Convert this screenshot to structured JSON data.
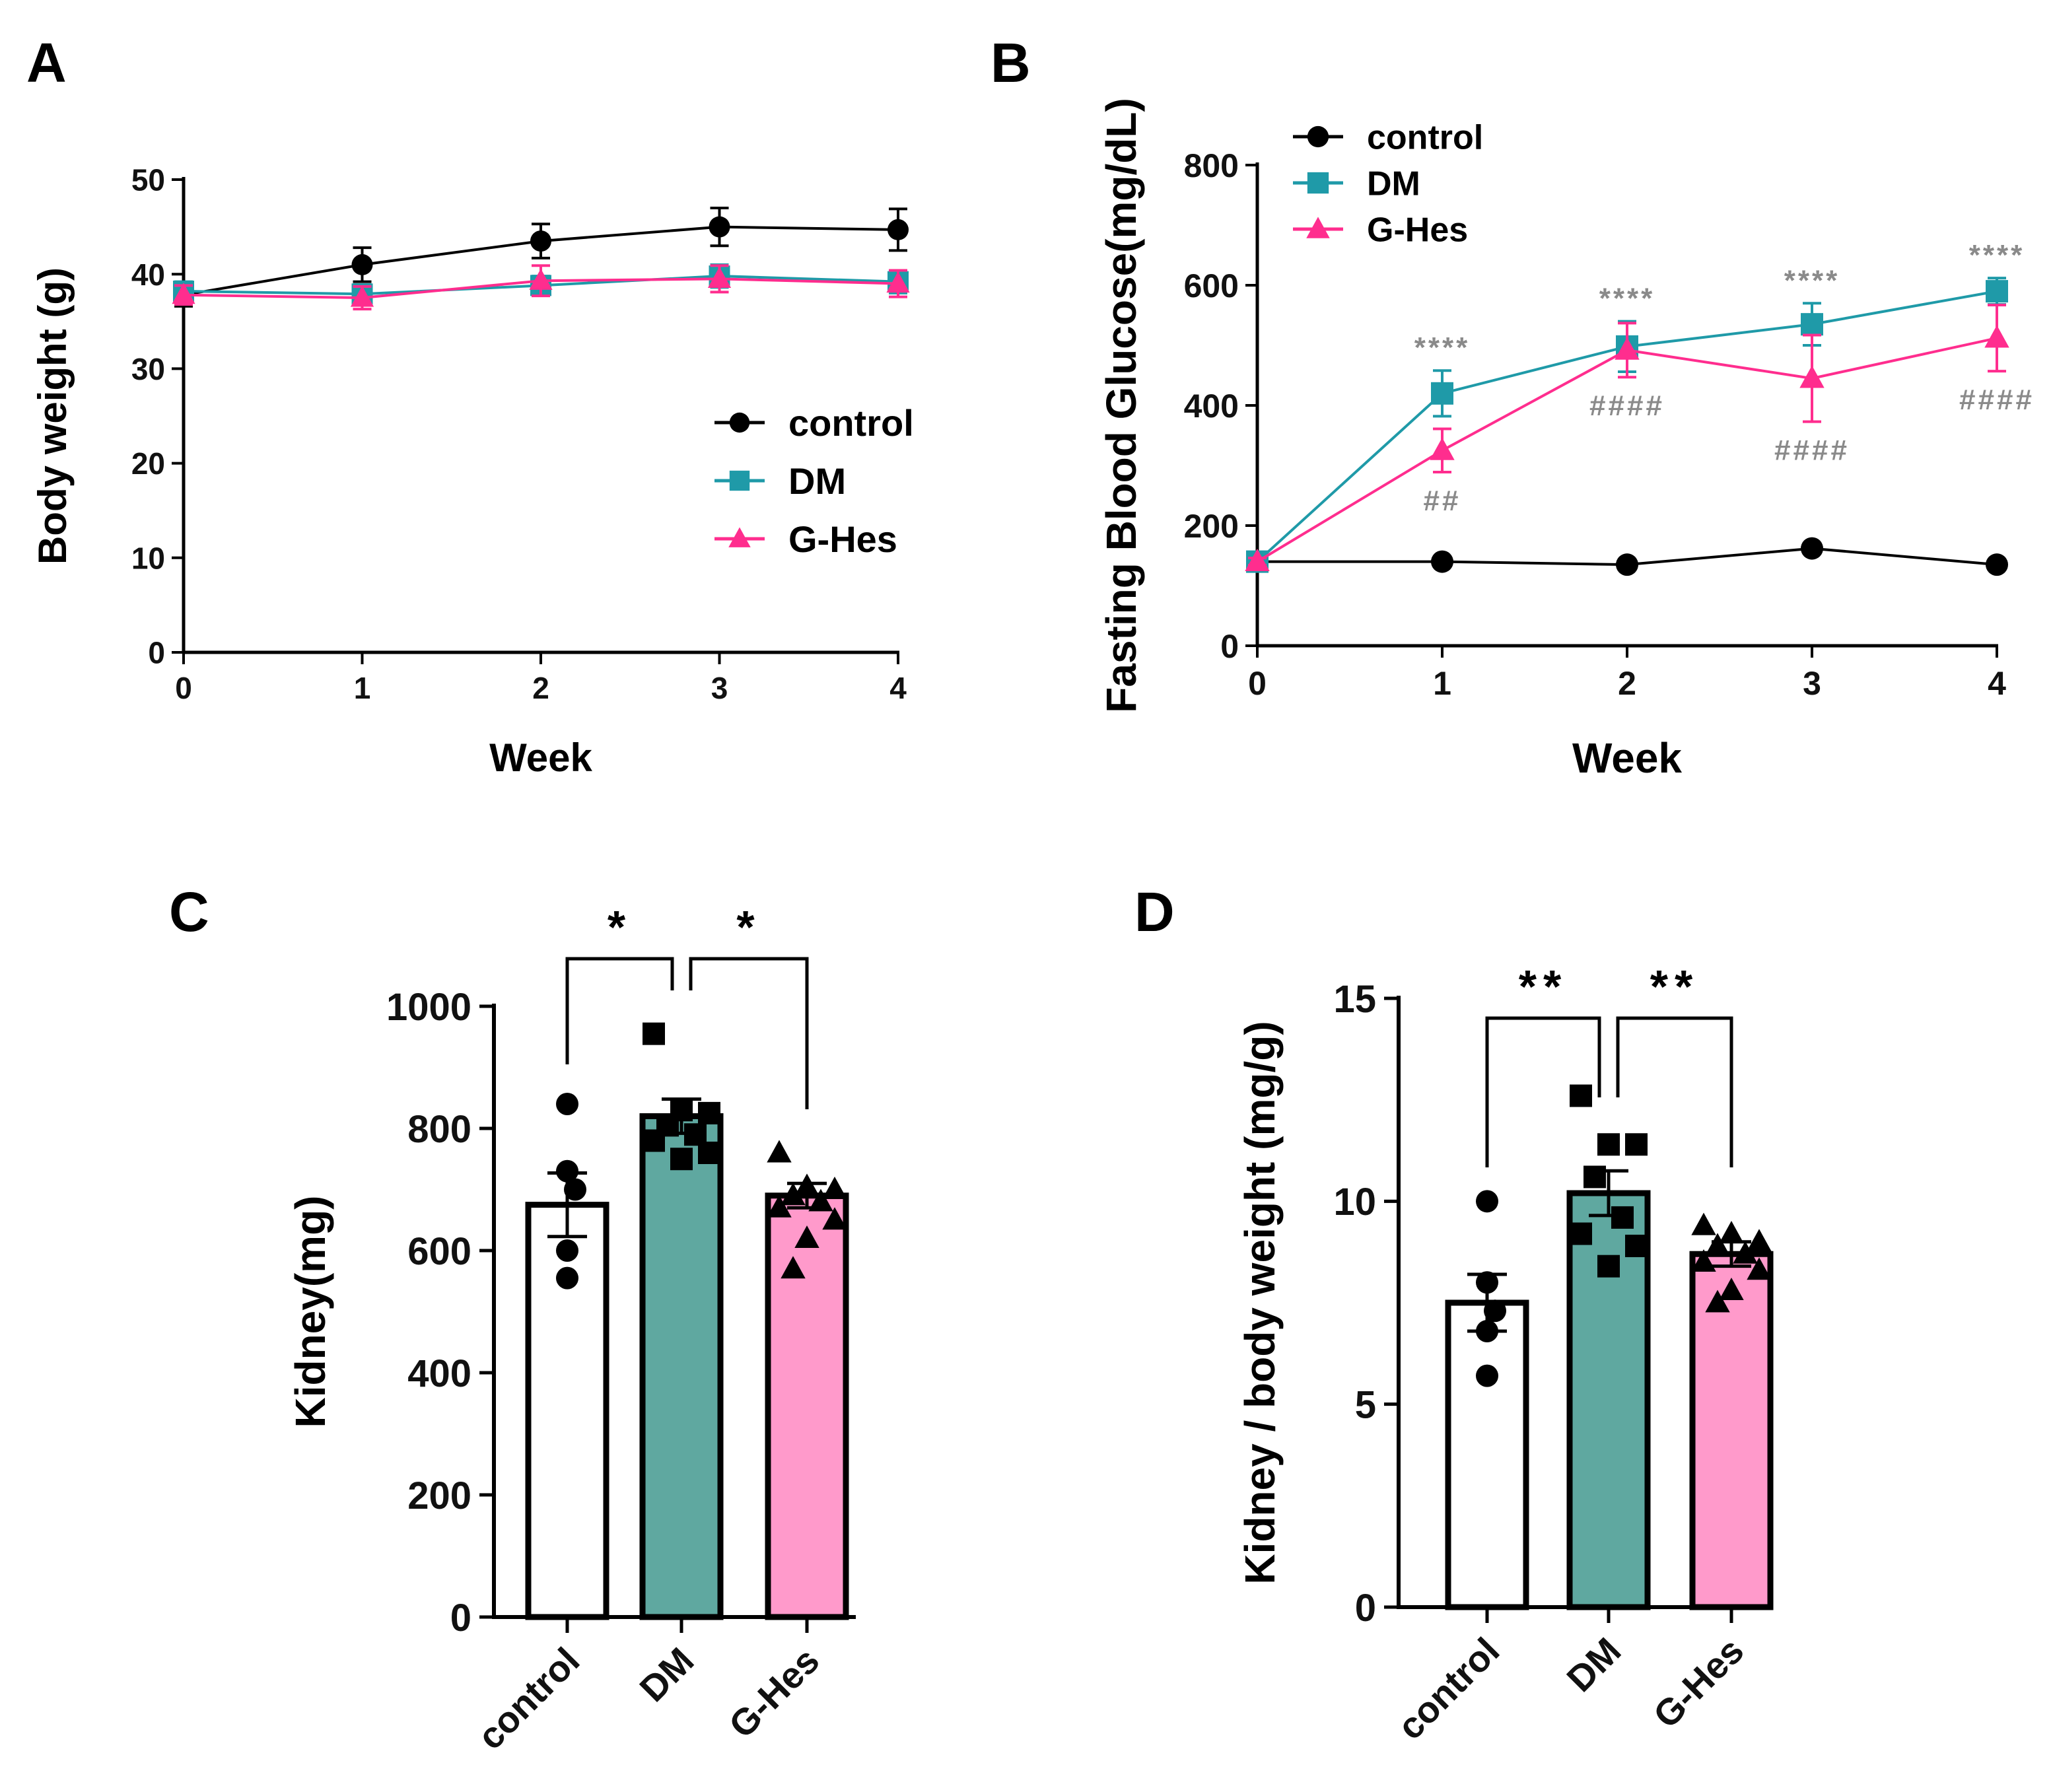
{
  "colors": {
    "control": "#000000",
    "DM": "#1f9aa8",
    "G-Hes": "#ff2d8e",
    "bar_control": "#ffffff",
    "bar_DM": "#5fa8a0",
    "bar_G-Hes": "#ff9acb",
    "sig_gray": "#8a8a8a"
  },
  "chart_data": [
    {
      "panel": "A",
      "type": "line",
      "xlabel": "Week",
      "ylabel": "Body weight (g)",
      "x": [
        0,
        1,
        2,
        3,
        4
      ],
      "xticks": [
        "0",
        "1",
        "2",
        "3",
        "4"
      ],
      "ylim": [
        0,
        50
      ],
      "yticks": [
        "0",
        "10",
        "20",
        "30",
        "40",
        "50"
      ],
      "legend_position": "center-right",
      "series": [
        {
          "name": "control",
          "marker": "circle",
          "values": [
            37.8,
            41.0,
            43.5,
            45.0,
            44.7
          ],
          "errors": [
            1.2,
            1.8,
            1.8,
            2.0,
            2.2
          ]
        },
        {
          "name": "DM",
          "marker": "square",
          "values": [
            38.2,
            37.9,
            38.8,
            39.8,
            39.2
          ],
          "errors": [
            1.0,
            1.0,
            1.0,
            1.2,
            1.2
          ]
        },
        {
          "name": "G-Hes",
          "marker": "triangle",
          "values": [
            37.8,
            37.5,
            39.3,
            39.5,
            39.0
          ],
          "errors": [
            1.0,
            1.2,
            1.6,
            1.4,
            1.4
          ]
        }
      ]
    },
    {
      "panel": "B",
      "type": "line",
      "xlabel": "Week",
      "ylabel": "Fasting Blood Glucose(mg/dL)",
      "x": [
        0,
        1,
        2,
        3,
        4
      ],
      "xticks": [
        "0",
        "1",
        "2",
        "3",
        "4"
      ],
      "ylim": [
        0,
        800
      ],
      "yticks": [
        "0",
        "200",
        "400",
        "600",
        "800"
      ],
      "legend_position": "top-left",
      "series": [
        {
          "name": "control",
          "marker": "circle",
          "values": [
            140,
            140,
            135,
            162,
            135
          ],
          "errors": [
            6,
            6,
            6,
            8,
            6
          ]
        },
        {
          "name": "DM",
          "marker": "square",
          "values": [
            140,
            420,
            498,
            535,
            590
          ],
          "errors": [
            6,
            38,
            42,
            35,
            22
          ]
        },
        {
          "name": "G-Hes",
          "marker": "triangle",
          "values": [
            140,
            325,
            492,
            445,
            512
          ],
          "errors": [
            6,
            36,
            45,
            72,
            55
          ]
        }
      ],
      "annotations": [
        {
          "x": 1,
          "text": "****",
          "above": true
        },
        {
          "x": 2,
          "text": "****",
          "above": true
        },
        {
          "x": 3,
          "text": "****",
          "above": true
        },
        {
          "x": 4,
          "text": "****",
          "above": true
        },
        {
          "x": 1,
          "text": "##",
          "above": false
        },
        {
          "x": 2,
          "text": "####",
          "above": false
        },
        {
          "x": 3,
          "text": "####",
          "above": false
        },
        {
          "x": 4,
          "text": "####",
          "above": false
        }
      ]
    },
    {
      "panel": "C",
      "type": "bar",
      "categories": [
        "control",
        "DM",
        "G-Hes"
      ],
      "ylabel": "Kidney(mg)",
      "xlabel": "",
      "ylim": [
        0,
        1000
      ],
      "yticks": [
        "0",
        "200",
        "400",
        "600",
        "800",
        "1000"
      ],
      "values": [
        675,
        820,
        690
      ],
      "errors": [
        52,
        28,
        20
      ],
      "points": [
        [
          840,
          730,
          700,
          600,
          555
        ],
        [
          955,
          830,
          825,
          805,
          790,
          780,
          760,
          750
        ],
        [
          760,
          705,
          700,
          690,
          680,
          670,
          650,
          620,
          570
        ]
      ],
      "brackets": [
        {
          "from": 0,
          "to": 1,
          "text": "*"
        },
        {
          "from": 1,
          "to": 2,
          "text": "*"
        }
      ]
    },
    {
      "panel": "D",
      "type": "bar",
      "categories": [
        "control",
        "DM",
        "G-Hes"
      ],
      "ylabel": "Kidney / body weight (mg/g)",
      "xlabel": "",
      "ylim": [
        0,
        15
      ],
      "yticks": [
        "0",
        "5",
        "10",
        "15"
      ],
      "values": [
        7.5,
        10.2,
        8.7
      ],
      "errors": [
        0.7,
        0.55,
        0.3
      ],
      "points": [
        [
          10.0,
          8.0,
          7.3,
          6.8,
          5.7
        ],
        [
          12.6,
          11.4,
          11.4,
          10.6,
          9.6,
          9.2,
          8.9,
          8.4
        ],
        [
          9.4,
          9.2,
          9.0,
          8.9,
          8.7,
          8.5,
          8.3,
          7.8,
          7.5
        ]
      ],
      "brackets": [
        {
          "from": 0,
          "to": 1,
          "text": "**"
        },
        {
          "from": 1,
          "to": 2,
          "text": "**"
        }
      ]
    }
  ]
}
